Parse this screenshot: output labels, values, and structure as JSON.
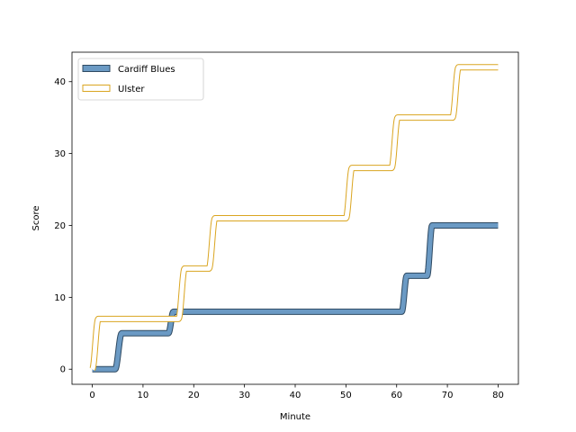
{
  "chart_data": {
    "type": "line",
    "title": "",
    "xlabel": "Minute",
    "ylabel": "Score",
    "xlim": [
      -4,
      84
    ],
    "ylim": [
      -2.1,
      44.1
    ],
    "xticks": [
      0,
      10,
      20,
      30,
      40,
      50,
      60,
      70,
      80
    ],
    "yticks": [
      0,
      10,
      20,
      30,
      40
    ],
    "grid": false,
    "legend_position": "upper-left",
    "series": [
      {
        "name": "Cardiff Blues",
        "style": "hollow-band",
        "fill_color": "#6b9ac4",
        "edge_color": "#2f4a62",
        "x": [
          0,
          4.5,
          5.8,
          15,
          16,
          61,
          62,
          66,
          67,
          80
        ],
        "y": [
          0,
          0,
          5,
          5,
          8,
          8,
          13,
          13,
          20,
          20
        ]
      },
      {
        "name": "Ulster",
        "style": "hollow-band",
        "fill_color": "#ffffff",
        "edge_color": "#daa520",
        "x": [
          0,
          1.2,
          17,
          18.2,
          23,
          24.2,
          50,
          51.2,
          59,
          60.2,
          71,
          72.2,
          80
        ],
        "y": [
          0,
          7,
          7,
          14,
          14,
          21,
          21,
          28,
          28,
          35,
          35,
          42,
          42
        ]
      }
    ]
  }
}
